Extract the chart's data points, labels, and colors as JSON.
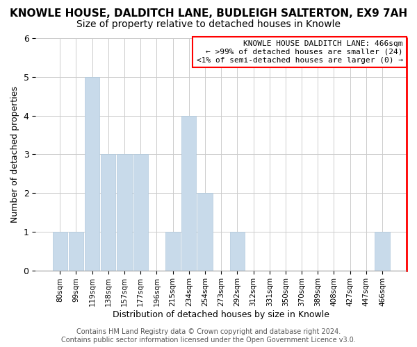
{
  "title": "KNOWLE HOUSE, DALDITCH LANE, BUDLEIGH SALTERTON, EX9 7AH",
  "subtitle": "Size of property relative to detached houses in Knowle",
  "xlabel": "Distribution of detached houses by size in Knowle",
  "ylabel": "Number of detached properties",
  "bar_labels": [
    "80sqm",
    "99sqm",
    "119sqm",
    "138sqm",
    "157sqm",
    "177sqm",
    "196sqm",
    "215sqm",
    "234sqm",
    "254sqm",
    "273sqm",
    "292sqm",
    "312sqm",
    "331sqm",
    "350sqm",
    "370sqm",
    "389sqm",
    "408sqm",
    "427sqm",
    "447sqm",
    "466sqm"
  ],
  "bar_values": [
    1,
    1,
    5,
    3,
    3,
    3,
    0,
    1,
    4,
    2,
    0,
    1,
    0,
    0,
    0,
    0,
    0,
    0,
    0,
    0,
    1
  ],
  "ylim": [
    0,
    6
  ],
  "yticks": [
    0,
    1,
    2,
    3,
    4,
    5,
    6
  ],
  "bar_color": "#c8daea",
  "bar_edge_color": "#b0c8dc",
  "grid_color": "#cccccc",
  "bg_color": "#ffffff",
  "annotation_text": "KNOWLE HOUSE DALDITCH LANE: 466sqm\n← >99% of detached houses are smaller (24)\n<1% of semi-detached houses are larger (0) →",
  "footer_text": "Contains HM Land Registry data © Crown copyright and database right 2024.\nContains public sector information licensed under the Open Government Licence v3.0.",
  "title_fontsize": 11,
  "subtitle_fontsize": 10,
  "xlabel_fontsize": 9,
  "ylabel_fontsize": 9,
  "annot_fontsize": 8,
  "footer_fontsize": 7
}
